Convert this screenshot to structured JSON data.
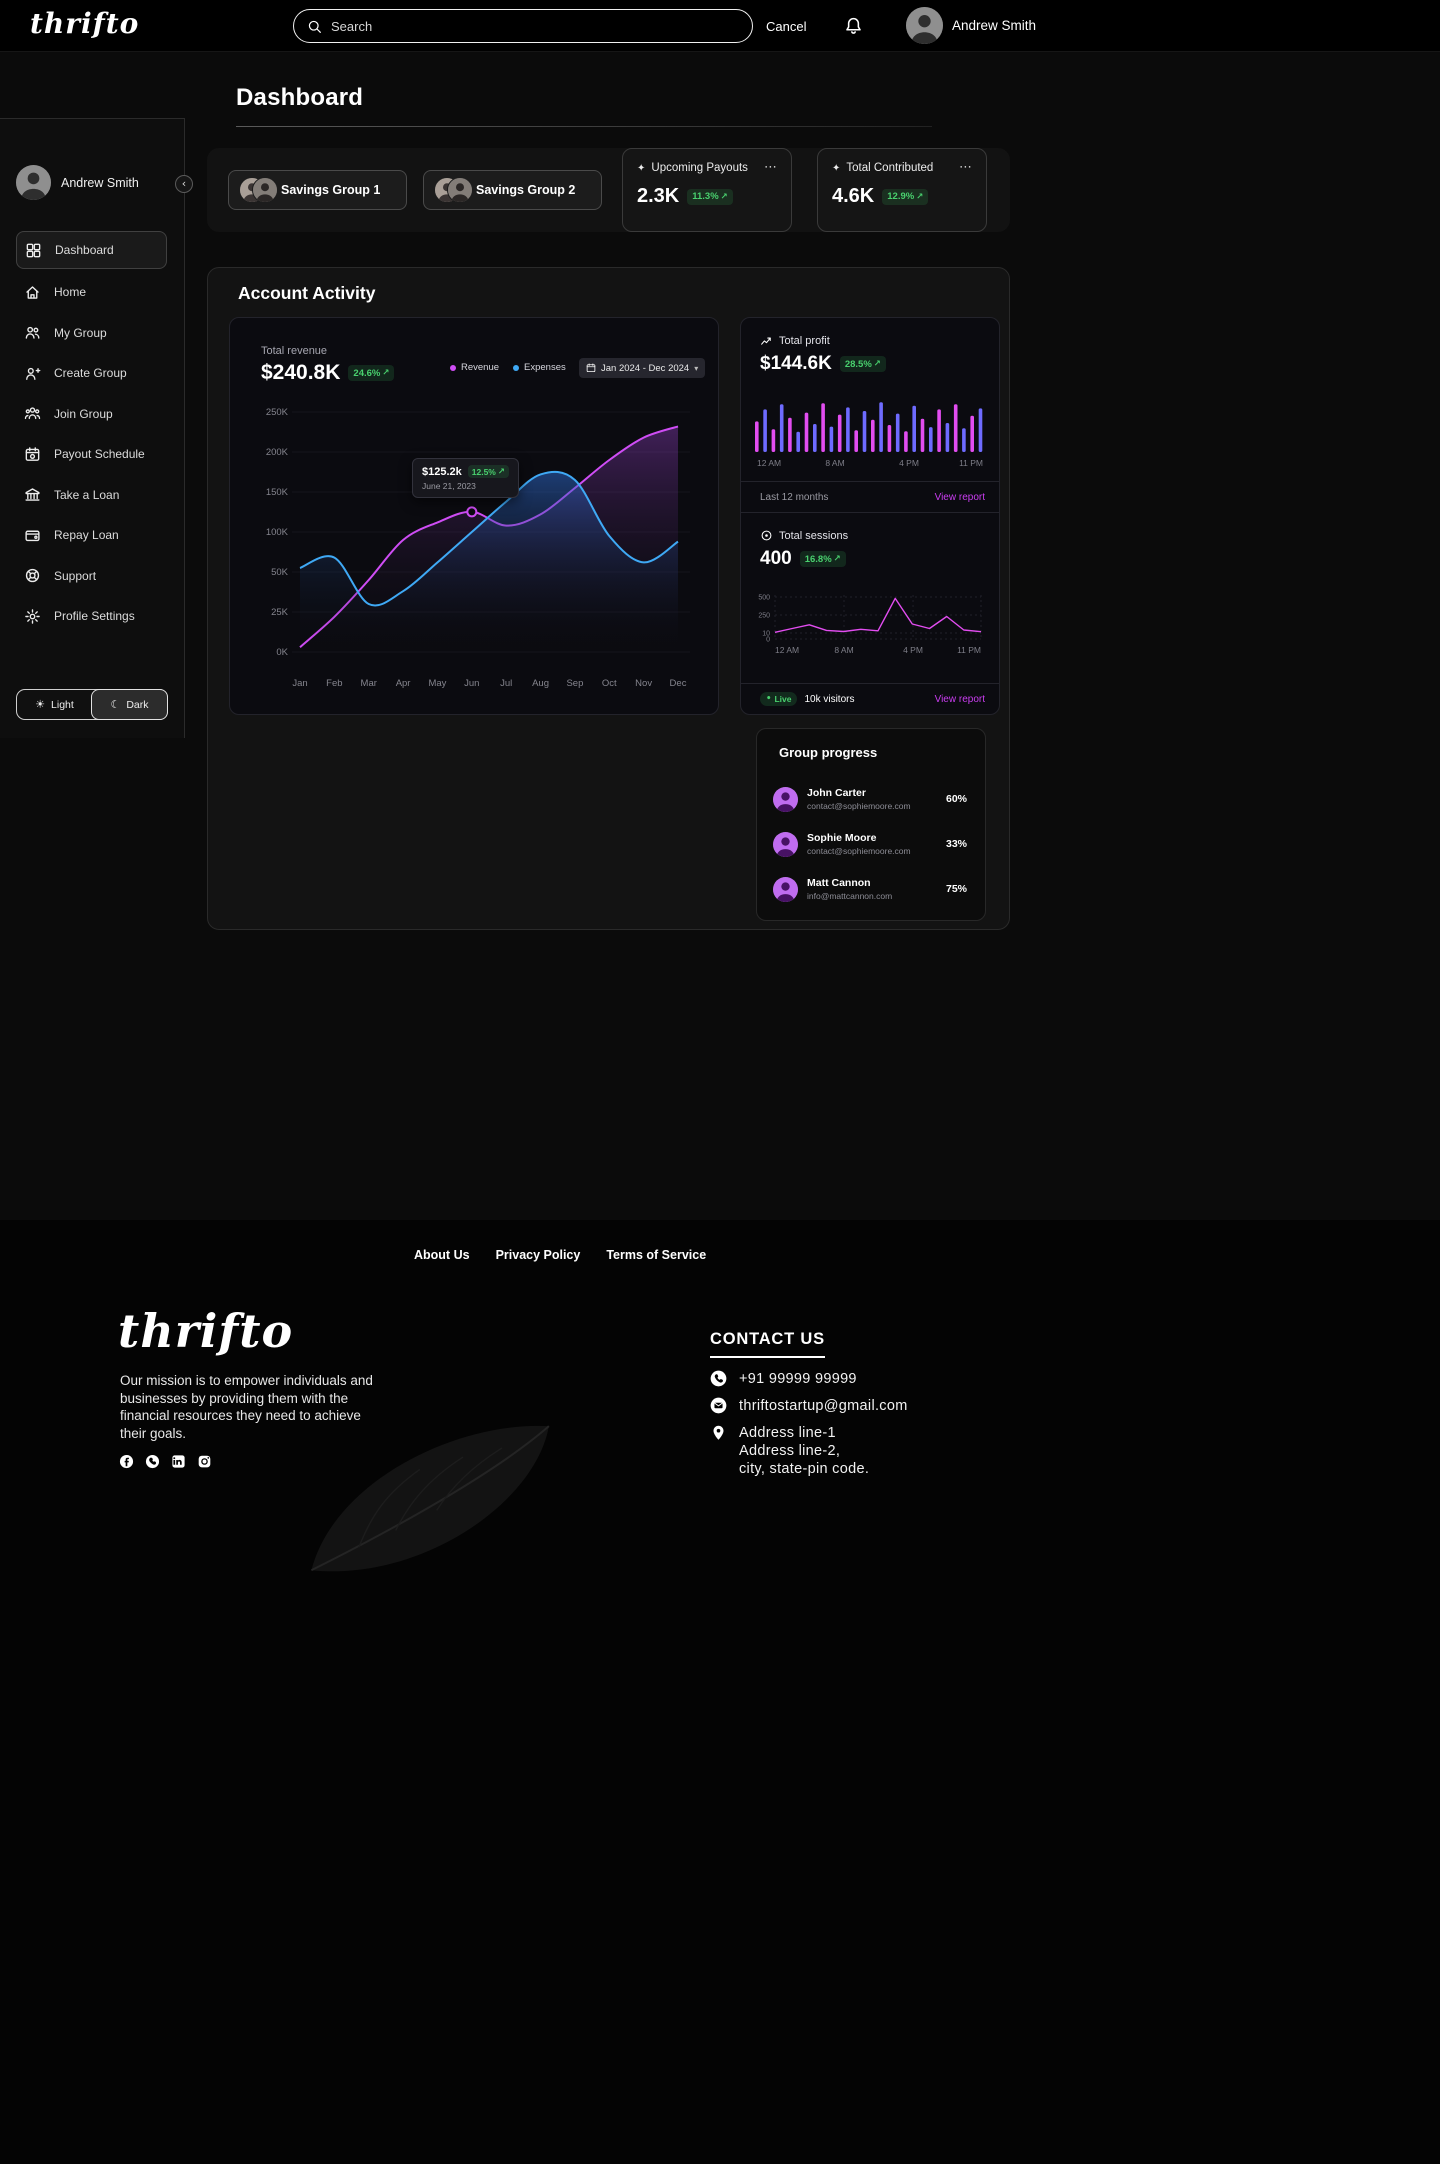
{
  "icons": {
    "more_options": "⋯",
    "trend_up": "↗",
    "star": "✦",
    "sun": "☀",
    "moon": "☾",
    "chevron_down": "▾",
    "chevron_left": "‹",
    "live_dot": "•"
  },
  "topbar": {
    "brand": "thrifto",
    "search_placeholder": "Search",
    "cancel_label": "Cancel",
    "user_name": "Andrew Smith"
  },
  "page_title": "Dashboard",
  "sidebar": {
    "user_name": "Andrew Smith",
    "items": [
      {
        "label": "Dashboard",
        "icon": "dashboard-grid",
        "active": true
      },
      {
        "label": "Home",
        "icon": "home"
      },
      {
        "label": "My Group",
        "icon": "my-group"
      },
      {
        "label": "Create Group",
        "icon": "create-group"
      },
      {
        "label": "Join Group",
        "icon": "join-group"
      },
      {
        "label": "Payout Schedule",
        "icon": "payout-schedule"
      },
      {
        "label": "Take a Loan",
        "icon": "take-loan"
      },
      {
        "label": "Repay Loan",
        "icon": "repay-loan"
      },
      {
        "label": "Support",
        "icon": "support"
      },
      {
        "label": "Profile Settings",
        "icon": "settings-gear"
      }
    ],
    "theme_toggle": {
      "light_label": "Light",
      "dark_label": "Dark",
      "selected": "Dark"
    }
  },
  "summary": {
    "groups": [
      {
        "label": "Savings Group 1"
      },
      {
        "label": "Savings Group 2"
      }
    ],
    "stats": [
      {
        "title": "Upcoming Payouts",
        "value": "2.3K",
        "delta": "11.3%"
      },
      {
        "title": "Total Contributed",
        "value": "4.6K",
        "delta": "12.9%"
      }
    ]
  },
  "activity": {
    "title": "Account Activity",
    "revenue_panel": {
      "label": "Total revenue",
      "value": "$240.8K",
      "delta": "24.6%",
      "legend": [
        {
          "name": "Revenue"
        },
        {
          "name": "Expenses"
        }
      ],
      "range_label": "Jan 2024 - Dec 2024",
      "tooltip": {
        "value": "$125.2k",
        "delta": "12.5%",
        "date": "June 21, 2023"
      }
    },
    "profit_panel": {
      "label": "Total profit",
      "value": "$144.6K",
      "delta": "28.5%",
      "footer_left": "Last 12 months",
      "footer_link": "View report"
    },
    "sessions_panel": {
      "label": "Total sessions",
      "value": "400",
      "delta": "16.8%",
      "live_label": "Live",
      "visitors_label": "10k visitors",
      "footer_link": "View report"
    }
  },
  "group_progress": {
    "title": "Group progress",
    "members": [
      {
        "name": "John Carter",
        "email": "contact@sophiemoore.com",
        "percent": "60%"
      },
      {
        "name": "Sophie Moore",
        "email": "contact@sophiemoore.com",
        "percent": "33%"
      },
      {
        "name": "Matt Cannon",
        "email": "info@mattcannon.com",
        "percent": "75%"
      }
    ]
  },
  "footer": {
    "links": [
      {
        "label": "About Us"
      },
      {
        "label": "Privacy Policy"
      },
      {
        "label": "Terms of Service"
      }
    ],
    "brand": "thrifto",
    "mission": "Our mission is to empower individuals and businesses by providing them with the financial resources they need to achieve their goals.",
    "contact_title": "CONTACT US",
    "phone": "+91 99999 99999",
    "email": "thriftostartup@gmail.com",
    "address_lines": [
      "Address line-1",
      "Address line-2,",
      "city, state-pin code."
    ],
    "social": [
      {
        "name": "facebook"
      },
      {
        "name": "whatsapp"
      },
      {
        "name": "linkedin"
      },
      {
        "name": "instagram"
      }
    ]
  },
  "chart_data": [
    {
      "type": "line",
      "title": "Total revenue",
      "x": [
        "Jan",
        "Feb",
        "Mar",
        "Apr",
        "May",
        "Jun",
        "Jul",
        "Aug",
        "Sep",
        "Oct",
        "Nov",
        "Dec"
      ],
      "y_ticks": [
        "250K",
        "200K",
        "150K",
        "100K",
        "50K",
        "25K",
        "0K"
      ],
      "y_tick_values": [
        250000,
        200000,
        150000,
        100000,
        50000,
        25000,
        0
      ],
      "series": [
        {
          "name": "Revenue",
          "color": "#cf4df5",
          "values": [
            3000,
            22000,
            45000,
            90000,
            112000,
            125200,
            108000,
            122000,
            155000,
            190000,
            218000,
            232000
          ]
        },
        {
          "name": "Expenses",
          "color": "#3fa9f5",
          "values": [
            55000,
            68000,
            30000,
            38000,
            62000,
            100000,
            138000,
            172000,
            165000,
            95000,
            62000,
            88000
          ]
        }
      ],
      "annotation": {
        "x": "Jun",
        "series": "Revenue",
        "value": 125200,
        "label": "$125.2k",
        "delta": "12.5%",
        "date": "June 21, 2023"
      },
      "legend_position": "top-right",
      "grid": true
    },
    {
      "type": "bar",
      "title": "Total profit",
      "x_labels": [
        "12 AM",
        "8 AM",
        "4 PM",
        "11 PM"
      ],
      "values": [
        55,
        78,
        40,
        88,
        62,
        35,
        72,
        50,
        90,
        45,
        68,
        82,
        38,
        75,
        58,
        92,
        48,
        70,
        36,
        85,
        60,
        44,
        78,
        52,
        88,
        42,
        66,
        80
      ],
      "bar_colors": [
        "#e24df0",
        "#6e6bff"
      ],
      "ylim": [
        0,
        100
      ]
    },
    {
      "type": "line",
      "title": "Total sessions",
      "x_labels": [
        "12 AM",
        "8 AM",
        "4 PM",
        "11 PM"
      ],
      "y_ticks": [
        "500",
        "250",
        "10",
        "0"
      ],
      "values": [
        20,
        70,
        120,
        45,
        30,
        60,
        40,
        480,
        130,
        70,
        230,
        50,
        28
      ],
      "color": "#e24df0",
      "ylim": [
        0,
        500
      ],
      "grid": "dashed"
    }
  ]
}
